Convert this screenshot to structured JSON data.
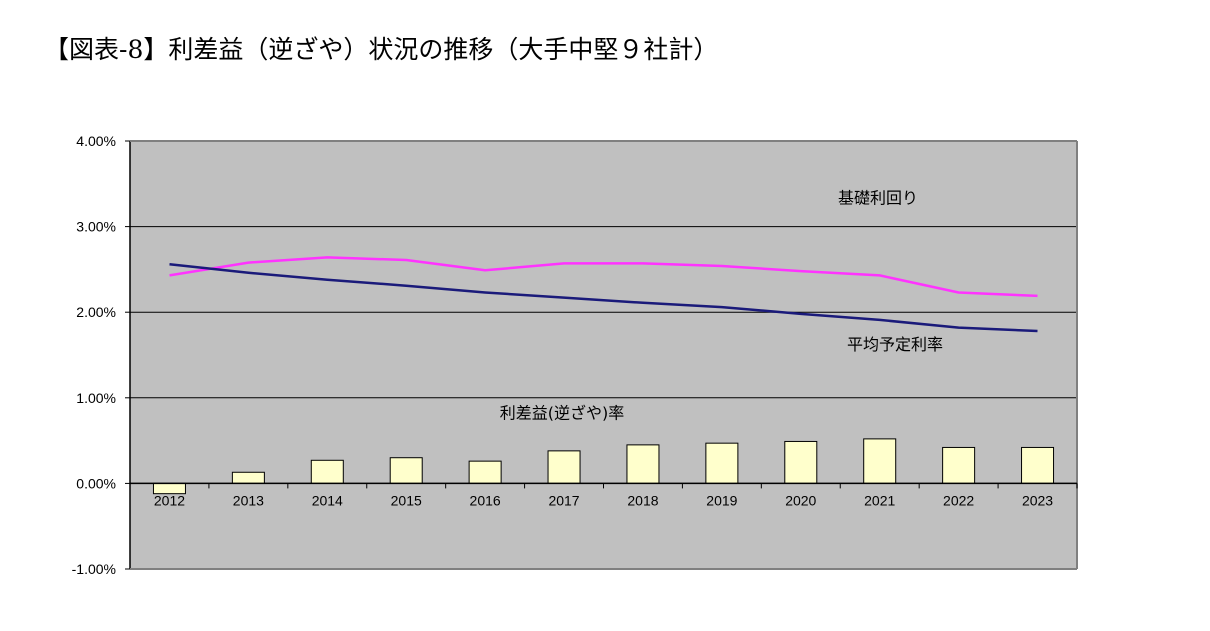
{
  "title": "【図表-8】利差益（逆ざや）状況の推移（大手中堅９社計）",
  "chart_data": {
    "type": "bar+line",
    "categories": [
      "2012",
      "2013",
      "2014",
      "2015",
      "2016",
      "2017",
      "2018",
      "2019",
      "2020",
      "2021",
      "2022",
      "2023"
    ],
    "y_ticks": [
      "4.00%",
      "3.00%",
      "2.00%",
      "1.00%",
      "0.00%",
      "-1.00%"
    ],
    "ylim": [
      -1.0,
      4.0
    ],
    "unit": "%",
    "grid": true,
    "series": [
      {
        "name": "基礎利回り",
        "type": "line",
        "color": "#ff33ff",
        "values": [
          2.43,
          2.58,
          2.64,
          2.61,
          2.49,
          2.57,
          2.57,
          2.54,
          2.48,
          2.43,
          2.23,
          2.19
        ]
      },
      {
        "name": "平均予定利率",
        "type": "line",
        "color": "#1a1a7a",
        "values": [
          2.56,
          2.46,
          2.38,
          2.31,
          2.23,
          2.17,
          2.11,
          2.06,
          1.98,
          1.91,
          1.82,
          1.78
        ]
      },
      {
        "name": "利差益(逆ざや)率",
        "type": "bar",
        "color": "#ffffcc",
        "values": [
          -0.12,
          0.13,
          0.27,
          0.3,
          0.26,
          0.38,
          0.45,
          0.47,
          0.49,
          0.52,
          0.42,
          0.42
        ]
      }
    ]
  },
  "colors": {
    "plot_background": "#c0c0c0",
    "bar_fill": "#ffffcc",
    "line_yield": "#ff33ff",
    "line_assumed": "#1a1a7a"
  }
}
